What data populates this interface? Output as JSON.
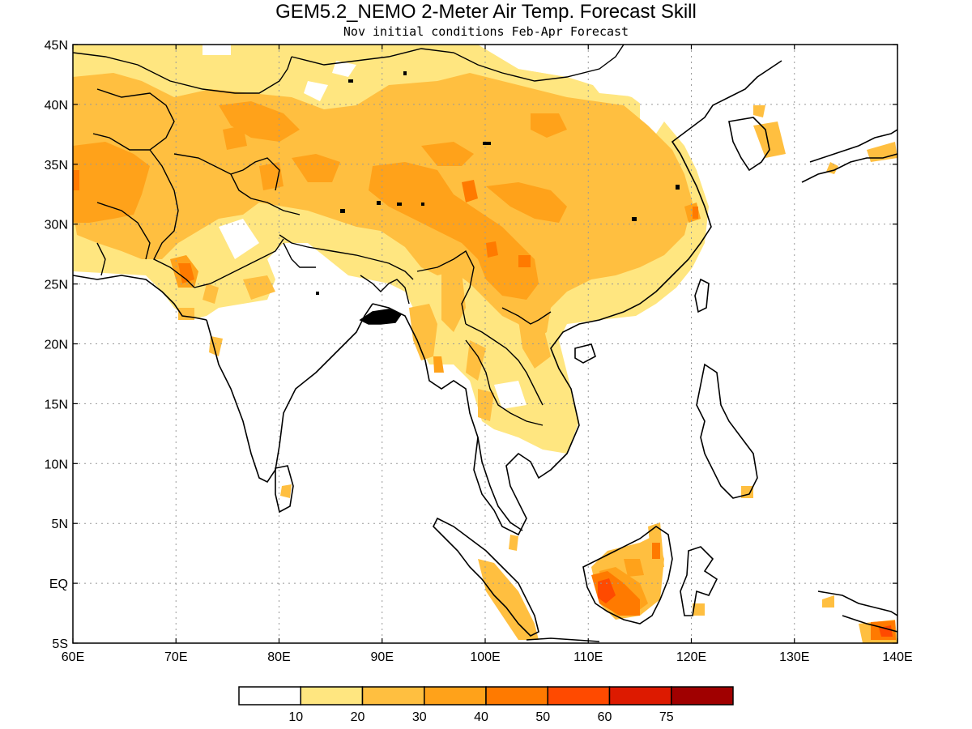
{
  "title": "GEM5.2_NEMO 2-Meter Air Temp. Forecast Skill",
  "subtitle": "Nov initial conditions  Feb-Apr Forecast",
  "lon_labels": [
    "60E",
    "70E",
    "80E",
    "90E",
    "100E",
    "110E",
    "120E",
    "130E",
    "140E"
  ],
  "lat_labels": [
    "45N",
    "40N",
    "35N",
    "30N",
    "25N",
    "20N",
    "15N",
    "10N",
    "5N",
    "EQ",
    "5S"
  ],
  "legend": {
    "labels": [
      "10",
      "20",
      "30",
      "40",
      "50",
      "60",
      "75"
    ],
    "colors": [
      "#ffffff",
      "#ffe680",
      "#ffbf40",
      "#ffa21a",
      "#ff7a00",
      "#ff4a00",
      "#dd1a00",
      "#a00000"
    ]
  },
  "colors": {
    "level1": "#ffe680",
    "level2": "#ffbf40",
    "level3": "#ffa21a",
    "level4": "#ff7a00",
    "level5": "#ff4a00",
    "coast": "#000000",
    "grid": "#999999"
  }
}
